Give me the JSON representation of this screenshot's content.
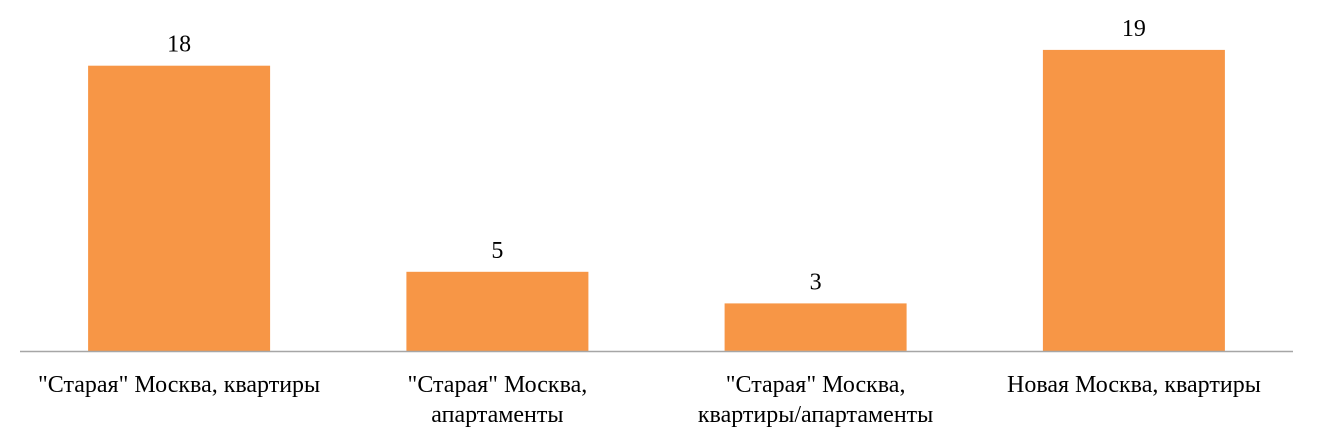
{
  "chart_data": {
    "type": "bar",
    "categories": [
      "\"Старая\" Москва, квартиры",
      "\"Старая\" Москва, апартаменты",
      "\"Старая\" Москва, квартиры/апартаменты",
      "Новая Москва, квартиры"
    ],
    "category_lines": [
      [
        "\"Старая\" Москва, квартиры"
      ],
      [
        "\"Старая\" Москва,",
        "апартаменты"
      ],
      [
        "\"Старая\" Москва,",
        "квартиры/апартаменты"
      ],
      [
        "Новая Москва, квартиры"
      ]
    ],
    "values": [
      18,
      5,
      3,
      19
    ],
    "data_labels": [
      "18",
      "5",
      "3",
      "19"
    ],
    "ylim": [
      0,
      20
    ],
    "grid": false,
    "legend": "none",
    "colors": {
      "bar": "#F79646",
      "axis": "#A6A6A6",
      "text": "#000000"
    }
  }
}
